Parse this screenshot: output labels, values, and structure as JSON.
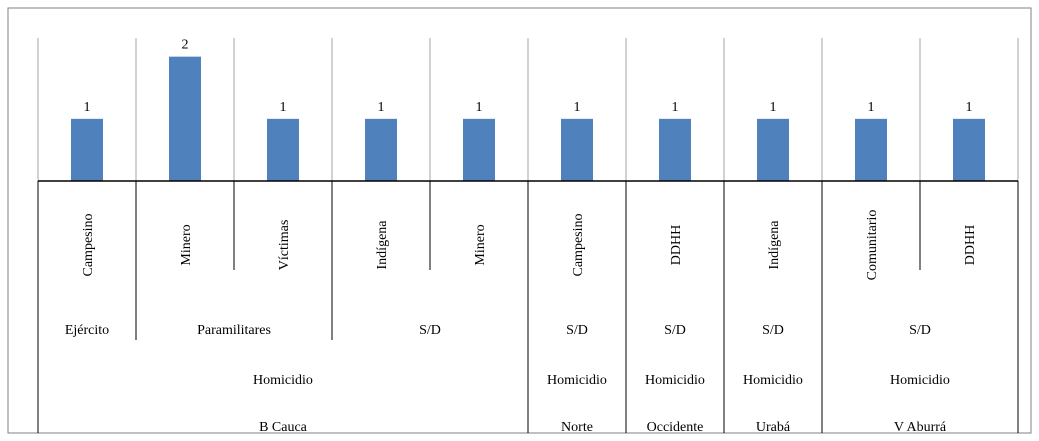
{
  "chart_data": {
    "type": "bar",
    "title": "",
    "xlabel": "",
    "ylabel": "",
    "ylim": [
      0,
      2.3
    ],
    "grid": true,
    "legend": "none",
    "bar_color": "#4f81bd",
    "categories": [
      "Campesino",
      "Minero",
      "Víctimas",
      "Indígena",
      "Minero",
      "Campesino",
      "DDHH",
      "Indígena",
      "Comunitario",
      "DDHH"
    ],
    "values": [
      1,
      2,
      1,
      1,
      1,
      1,
      1,
      1,
      1,
      1
    ],
    "groups": [
      {
        "label": "Ejército",
        "start": 0,
        "span": 1
      },
      {
        "label": "Paramilitares",
        "start": 1,
        "span": 2
      },
      {
        "label": "S/D",
        "start": 3,
        "span": 2
      },
      {
        "label": "S/D",
        "start": 5,
        "span": 1
      },
      {
        "label": "S/D",
        "start": 6,
        "span": 1
      },
      {
        "label": "S/D",
        "start": 7,
        "span": 1
      },
      {
        "label": "S/D",
        "start": 8,
        "span": 2
      }
    ],
    "types": [
      {
        "label": "Homicidio",
        "start": 0,
        "span": 5
      },
      {
        "label": "Homicidio",
        "start": 5,
        "span": 1
      },
      {
        "label": "Homicidio",
        "start": 6,
        "span": 1
      },
      {
        "label": "Homicidio",
        "start": 7,
        "span": 1
      },
      {
        "label": "Homicidio",
        "start": 8,
        "span": 2
      }
    ],
    "regions": [
      {
        "label": "B Cauca",
        "start": 0,
        "span": 5
      },
      {
        "label": "Norte",
        "start": 5,
        "span": 1
      },
      {
        "label": "Occidente",
        "start": 6,
        "span": 1
      },
      {
        "label": "Urabá",
        "start": 7,
        "span": 1
      },
      {
        "label": "V Aburrá",
        "start": 8,
        "span": 2
      }
    ]
  }
}
